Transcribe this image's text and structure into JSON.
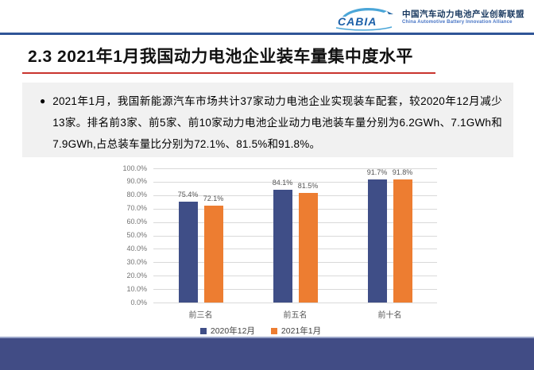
{
  "header": {
    "logo_text": "CABIA",
    "org_name_zh": "中国汽车动力电池产业创新联盟",
    "org_name_en": "China Automotive Battery Innovation Alliance"
  },
  "title": "2.3 2021年1月我国动力电池企业装车量集中度水平",
  "callout": {
    "bullet": "●",
    "text": "2021年1月，我国新能源汽车市场共计37家动力电池企业实现装车配套，较2020年12月减少13家。排名前3家、前5家、前10家动力电池企业动力电池装车量分别为6.2GWh、7.1GWh和7.9GWh,占总装车量比分别为72.1%、81.5%和91.8%。"
  },
  "chart_data": {
    "type": "bar",
    "categories": [
      "前三名",
      "前五名",
      "前十名"
    ],
    "series": [
      {
        "name": "2020年12月",
        "color": "#3F4E87",
        "values": [
          75.4,
          84.1,
          91.7
        ]
      },
      {
        "name": "2021年1月",
        "color": "#ED7D31",
        "values": [
          72.1,
          81.5,
          91.8
        ]
      }
    ],
    "value_labels": [
      [
        "75.4%",
        "84.1%",
        "91.7%"
      ],
      [
        "72.1%",
        "81.5%",
        "91.8%"
      ]
    ],
    "title": "",
    "xlabel": "",
    "ylabel": "",
    "ylim": [
      0,
      100
    ],
    "ytick_step": 10,
    "ytick_labels": [
      "100.0%",
      "90.0%",
      "80.0%",
      "70.0%",
      "60.0%",
      "50.0%",
      "40.0%",
      "30.0%",
      "20.0%",
      "10.0%",
      "0.0%"
    ],
    "grid": true,
    "legend_position": "bottom"
  },
  "colors": {
    "header_line": "#2F5597",
    "title_underline": "#C9342E",
    "callout_bg": "#F1F1F1",
    "footer_bar": "#414C85",
    "gridline": "#D9D9D9",
    "axis_text": "#737373",
    "series1": "#3F4E87",
    "series2": "#ED7D31"
  }
}
